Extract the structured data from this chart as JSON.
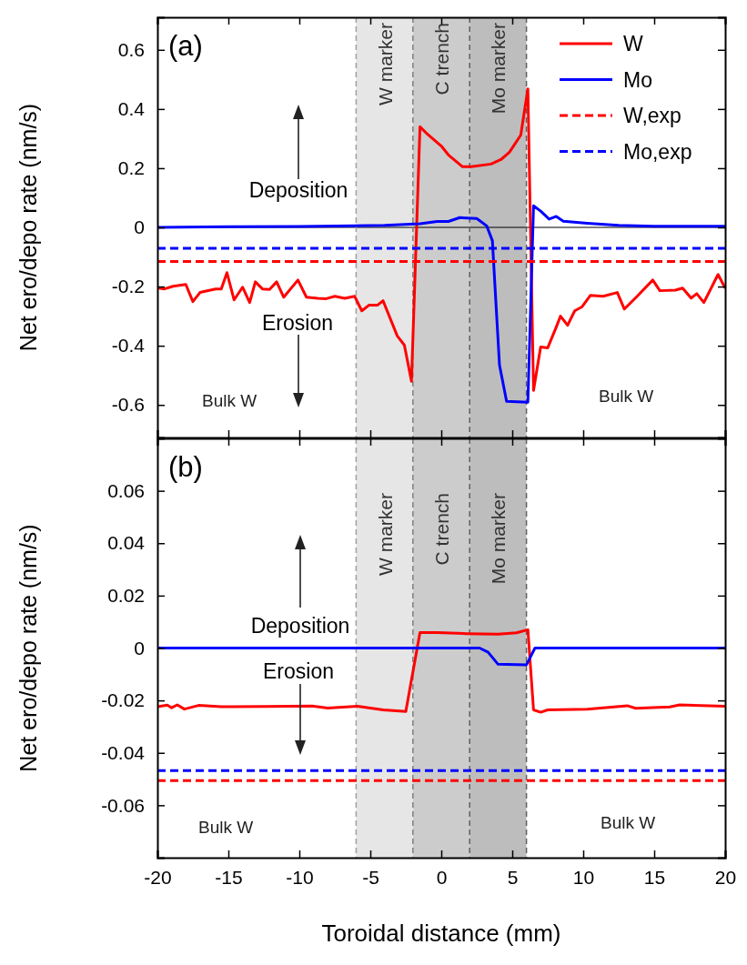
{
  "chart_data": [
    {
      "type": "line",
      "title": "(a)",
      "ylabel": "Net ero/depo rate (nm/s)",
      "xlim": [
        -20,
        20
      ],
      "xticks": [
        -20,
        -15,
        -10,
        -5,
        0,
        5,
        10,
        15,
        20
      ],
      "ylim": [
        -0.71,
        0.71
      ],
      "yticks": [
        -0.6,
        -0.4,
        -0.2,
        0,
        0.2,
        0.4,
        0.6
      ],
      "tick_labels": "y",
      "legend": "top right",
      "grid": false,
      "line_style": "solid",
      "bands": [
        {
          "axis": "x",
          "from": -6,
          "to": -2,
          "label": "W marker",
          "color": "#e6e6e6"
        },
        {
          "axis": "x",
          "from": -2,
          "to": 2,
          "label": "C trench",
          "color": "#cccccc"
        },
        {
          "axis": "x",
          "from": 2,
          "to": 6,
          "label": "Mo marker",
          "color": "#bdbdbd"
        }
      ],
      "ref_lines": [
        {
          "axis": "y",
          "value": 0,
          "color": "#000000",
          "line_style": "solid"
        },
        {
          "axis": "x",
          "value": -6,
          "color": "#a0a0a0",
          "line_style": "dashed"
        },
        {
          "axis": "x",
          "value": -2,
          "color": "#808080",
          "line_style": "dashed"
        },
        {
          "axis": "x",
          "value": 2,
          "color": "#606060",
          "line_style": "dashed"
        },
        {
          "axis": "x",
          "value": 6,
          "color": "#606060",
          "line_style": "dashed"
        }
      ],
      "annotations": [
        "Deposition",
        "Erosion",
        "Bulk W",
        "Bulk W"
      ],
      "series": [
        {
          "name": "W",
          "color": "#ff0000",
          "x": [
            -20,
            -19.5,
            -18.9,
            -18,
            -17.5,
            -17,
            -15.9,
            -15.5,
            -15.1,
            -14.6,
            -14,
            -13.5,
            -13.1,
            -12.6,
            -12.1,
            -11.6,
            -11.1,
            -10.1,
            -9.5,
            -8.7,
            -8.1,
            -7.5,
            -6.8,
            -6.1,
            -5.6,
            -5.1,
            -4.5,
            -4.1,
            -3.1,
            -2.6,
            -2.1,
            -1.5,
            -1,
            0,
            0.5,
            1.5,
            2.1,
            3.5,
            4.2,
            4.8,
            5.6,
            6.1,
            6.5,
            7,
            7.5,
            8.1,
            8.4,
            8.9,
            9.4,
            9.9,
            10.5,
            11.4,
            12.4,
            12.9,
            13.8,
            14.9,
            15.4,
            16.5,
            17,
            17.6,
            18,
            18.5,
            19.5,
            20
          ],
          "values": [
            -0.204,
            -0.208,
            -0.199,
            -0.193,
            -0.251,
            -0.22,
            -0.208,
            -0.208,
            -0.153,
            -0.245,
            -0.202,
            -0.254,
            -0.184,
            -0.208,
            -0.21,
            -0.184,
            -0.236,
            -0.178,
            -0.236,
            -0.24,
            -0.241,
            -0.233,
            -0.24,
            -0.233,
            -0.282,
            -0.263,
            -0.263,
            -0.248,
            -0.367,
            -0.398,
            -0.52,
            0.34,
            0.316,
            0.275,
            0.245,
            0.205,
            0.205,
            0.214,
            0.229,
            0.254,
            0.312,
            0.468,
            -0.551,
            -0.404,
            -0.407,
            -0.337,
            -0.3,
            -0.331,
            -0.282,
            -0.269,
            -0.23,
            -0.233,
            -0.22,
            -0.276,
            -0.233,
            -0.178,
            -0.214,
            -0.212,
            -0.205,
            -0.239,
            -0.224,
            -0.254,
            -0.159,
            -0.205
          ]
        },
        {
          "name": "Mo",
          "color": "#0000ff",
          "x": [
            -20,
            -15,
            -10,
            -6.2,
            -4,
            -1.5,
            -0.3,
            0.5,
            1.3,
            2.5,
            3.2,
            3.6,
            4.1,
            4.6,
            6.1,
            6.5,
            7,
            7.6,
            8.1,
            8.6,
            10.3,
            12.5,
            15,
            20
          ],
          "values": [
            0,
            0.002,
            0.003,
            0.005,
            0.007,
            0.012,
            0.02,
            0.02,
            0.033,
            0.03,
            0.005,
            -0.045,
            -0.465,
            -0.588,
            -0.591,
            0.073,
            0.055,
            0.028,
            0.037,
            0.021,
            0.014,
            0.007,
            0.004,
            0.004
          ]
        },
        {
          "name": "W,exp",
          "color": "#ff0000",
          "line_style": "dashed",
          "x": [
            -20,
            20
          ],
          "values": [
            -0.115,
            -0.115
          ]
        },
        {
          "name": "Mo,exp",
          "color": "#0000ff",
          "line_style": "dashed",
          "x": [
            -20,
            20
          ],
          "values": [
            -0.071,
            -0.071
          ]
        }
      ]
    },
    {
      "type": "line",
      "title": "(b)",
      "xlabel": "Toroidal distance (mm)",
      "ylabel": "Net ero/depo rate (nm/s)",
      "xlim": [
        -20,
        20
      ],
      "xticks": [
        -20,
        -15,
        -10,
        -5,
        0,
        5,
        10,
        15,
        20
      ],
      "ylim": [
        -0.08,
        0.08
      ],
      "yticks": [
        -0.06,
        -0.04,
        -0.02,
        0,
        0.02,
        0.04,
        0.06
      ],
      "legend": false,
      "grid": false,
      "line_style": "solid",
      "bands": [
        {
          "axis": "x",
          "from": -6,
          "to": -2,
          "label": "W marker",
          "color": "#e6e6e6"
        },
        {
          "axis": "x",
          "from": -2,
          "to": 2,
          "label": "C trench",
          "color": "#cccccc"
        },
        {
          "axis": "x",
          "from": 2,
          "to": 6,
          "label": "Mo marker",
          "color": "#bdbdbd"
        }
      ],
      "ref_lines": [
        {
          "axis": "x",
          "value": -6,
          "color": "#a0a0a0",
          "line_style": "dashed"
        },
        {
          "axis": "x",
          "value": -2,
          "color": "#808080",
          "line_style": "dashed"
        },
        {
          "axis": "x",
          "value": 2,
          "color": "#606060",
          "line_style": "dashed"
        },
        {
          "axis": "x",
          "value": 6,
          "color": "#606060",
          "line_style": "dashed"
        }
      ],
      "annotations": [
        "Deposition",
        "Erosion",
        "Bulk W",
        "Bulk W"
      ],
      "series": [
        {
          "color": "#ff0000",
          "x": [
            -20,
            -19.3,
            -19,
            -18.6,
            -18.1,
            -17.1,
            -15.5,
            -12.3,
            -9.1,
            -8,
            -5.9,
            -4.1,
            -2.5,
            -1.5,
            -0.3,
            1.8,
            4,
            5.3,
            6.1,
            6.5,
            7,
            7.5,
            10.3,
            13.1,
            13.7,
            16.1,
            16.8,
            20
          ],
          "values": [
            -0.0224,
            -0.0218,
            -0.0228,
            -0.0217,
            -0.0233,
            -0.0219,
            -0.0224,
            -0.0223,
            -0.0221,
            -0.0229,
            -0.0222,
            -0.0236,
            -0.0242,
            0.0059,
            0.0059,
            0.0055,
            0.0053,
            0.0058,
            0.007,
            -0.0236,
            -0.0245,
            -0.0236,
            -0.0233,
            -0.022,
            -0.023,
            -0.0225,
            -0.0217,
            -0.0222
          ]
        },
        {
          "color": "#0000ff",
          "x": [
            -20,
            2.7,
            3.3,
            4,
            6,
            6.6,
            20
          ],
          "values": [
            0,
            0,
            -0.0016,
            -0.0062,
            -0.0064,
            0,
            0
          ]
        },
        {
          "color": "#0000ff",
          "line_style": "dashed",
          "x": [
            -20,
            20
          ],
          "values": [
            -0.0468,
            -0.0468
          ]
        },
        {
          "color": "#ff0000",
          "line_style": "dashed",
          "x": [
            -20,
            20
          ],
          "values": [
            -0.0506,
            -0.0506
          ]
        }
      ]
    }
  ]
}
